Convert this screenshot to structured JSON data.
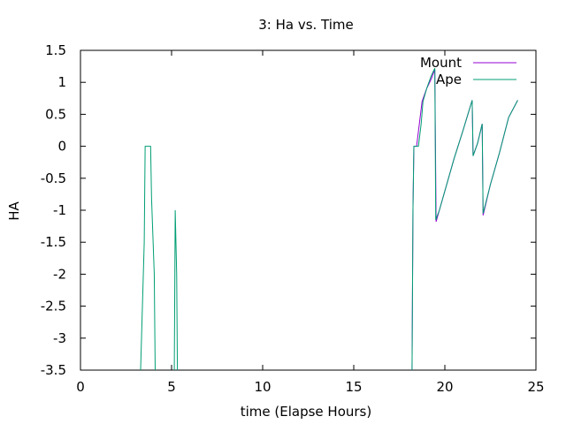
{
  "chart_data": {
    "type": "line",
    "title": "3: Ha vs. Time",
    "xlabel": "time (Elapse Hours)",
    "ylabel": "HA",
    "xlim": [
      0,
      25
    ],
    "ylim": [
      -3.5,
      1.5
    ],
    "xticks": [
      "0",
      "5",
      "10",
      "15",
      "20",
      "25"
    ],
    "yticks": [
      "1.5",
      "1",
      "0.5",
      "0",
      "-0.5",
      "-1",
      "-1.5",
      "-2",
      "-2.5",
      "-3",
      "-3.5"
    ],
    "grid": false,
    "legend_position": "top-right",
    "series": [
      {
        "name": "Mount",
        "color": "#9400d3",
        "segments": [
          [
            [
              18.2,
              -3.5
            ],
            [
              18.25,
              -1.0
            ],
            [
              18.3,
              0.0
            ],
            [
              18.45,
              0.0
            ],
            [
              18.6,
              0.35
            ],
            [
              18.75,
              0.7
            ],
            [
              19.0,
              0.9
            ],
            [
              19.25,
              1.05
            ],
            [
              19.45,
              1.2
            ],
            [
              19.52,
              -1.18
            ],
            [
              19.7,
              -1.0
            ],
            [
              20.0,
              -0.7
            ],
            [
              20.5,
              -0.2
            ],
            [
              21.0,
              0.25
            ],
            [
              21.5,
              0.72
            ],
            [
              21.55,
              -0.15
            ],
            [
              21.8,
              0.05
            ],
            [
              22.05,
              0.35
            ],
            [
              22.1,
              -1.08
            ],
            [
              22.5,
              -0.6
            ],
            [
              23.0,
              -0.1
            ],
            [
              23.5,
              0.45
            ],
            [
              24.0,
              0.72
            ]
          ]
        ]
      },
      {
        "name": "Ape",
        "color": "#009e73",
        "segments": [
          [
            [
              3.3,
              -3.5
            ],
            [
              3.5,
              -1.5
            ],
            [
              3.55,
              0.0
            ],
            [
              3.85,
              0.0
            ],
            [
              3.9,
              -0.8
            ],
            [
              4.05,
              -2.0
            ],
            [
              4.1,
              -3.5
            ]
          ],
          [
            [
              5.15,
              -3.5
            ],
            [
              5.2,
              -1.0
            ],
            [
              5.28,
              -2.0
            ],
            [
              5.32,
              -3.5
            ]
          ],
          [
            [
              18.2,
              -3.5
            ],
            [
              18.25,
              -1.0
            ],
            [
              18.3,
              0.0
            ],
            [
              18.55,
              0.0
            ],
            [
              18.7,
              0.35
            ],
            [
              18.8,
              0.7
            ],
            [
              19.0,
              0.9
            ],
            [
              19.25,
              1.1
            ],
            [
              19.45,
              1.22
            ],
            [
              19.5,
              -1.15
            ],
            [
              19.7,
              -1.0
            ],
            [
              20.0,
              -0.7
            ],
            [
              20.5,
              -0.2
            ],
            [
              21.0,
              0.25
            ],
            [
              21.5,
              0.72
            ],
            [
              21.55,
              -0.15
            ],
            [
              21.8,
              0.05
            ],
            [
              22.05,
              0.35
            ],
            [
              22.1,
              -1.05
            ],
            [
              22.5,
              -0.6
            ],
            [
              23.0,
              -0.1
            ],
            [
              23.5,
              0.45
            ],
            [
              24.0,
              0.72
            ]
          ]
        ]
      }
    ]
  }
}
